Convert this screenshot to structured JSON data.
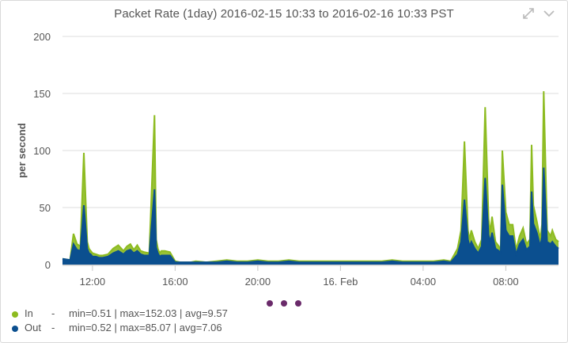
{
  "title": "Packet Rate (1day) 2016-02-15 10:33 to 2016-02-16 10:33 PST",
  "controls": {
    "expand_icon": "expand-arrows-icon",
    "collapse_icon": "chevron-down-icon"
  },
  "colors": {
    "in": "#8dbb20",
    "out": "#0b4f8f",
    "grid": "#dcdcdc",
    "pager": "#6a2a6a"
  },
  "pager": {
    "pages": 3
  },
  "legend": [
    {
      "name": "In",
      "dash": "-",
      "min_text": "min=0.51",
      "max_text": "max=152.03",
      "avg_text": "avg=9.57"
    },
    {
      "name": "Out",
      "dash": "-",
      "min_text": "min=0.52",
      "max_text": "max=85.07",
      "avg_text": "avg=7.06"
    }
  ],
  "chart_data": {
    "type": "area",
    "ylabel": "per second",
    "xlabel": "",
    "ylim": [
      0,
      200
    ],
    "y_ticks": [
      0,
      50,
      100,
      150,
      200
    ],
    "x_range": [
      "2016-02-15 10:33",
      "2016-02-16 10:33"
    ],
    "x_ticks": [
      {
        "t": "2016-02-15 12:00",
        "label": "12:00"
      },
      {
        "t": "2016-02-15 16:00",
        "label": "16:00"
      },
      {
        "t": "2016-02-15 20:00",
        "label": "20:00"
      },
      {
        "t": "2016-02-16 00:00",
        "label": "16. Feb"
      },
      {
        "t": "2016-02-16 04:00",
        "label": "04:00"
      },
      {
        "t": "2016-02-16 08:00",
        "label": "08:00"
      }
    ],
    "grid": true,
    "legend_position": "bottom-left",
    "x": [
      "10:33",
      "10:55",
      "11:05",
      "11:15",
      "11:25",
      "11:35",
      "11:45",
      "11:50",
      "11:55",
      "12:00",
      "12:10",
      "12:20",
      "12:30",
      "12:45",
      "13:00",
      "13:15",
      "13:30",
      "13:40",
      "13:50",
      "14:00",
      "14:10",
      "14:20",
      "14:30",
      "14:45",
      "15:00",
      "15:05",
      "15:10",
      "15:15",
      "15:20",
      "15:30",
      "15:45",
      "16:00",
      "16:15",
      "16:30",
      "16:45",
      "17:00",
      "17:30",
      "18:00",
      "18:30",
      "19:00",
      "19:30",
      "20:00",
      "20:30",
      "21:00",
      "21:30",
      "22:00",
      "22:30",
      "23:00",
      "23:30",
      "00:00",
      "00:30",
      "01:00",
      "01:30",
      "02:00",
      "02:30",
      "03:00",
      "03:30",
      "04:00",
      "04:30",
      "05:00",
      "05:20",
      "05:40",
      "05:50",
      "06:00",
      "06:10",
      "06:15",
      "06:20",
      "06:30",
      "06:40",
      "06:50",
      "07:00",
      "07:10",
      "07:15",
      "07:20",
      "07:30",
      "07:40",
      "07:45",
      "07:50",
      "08:00",
      "08:10",
      "08:20",
      "08:30",
      "08:40",
      "08:50",
      "09:00",
      "09:10",
      "09:15",
      "09:20",
      "09:30",
      "09:40",
      "09:45",
      "09:50",
      "10:00",
      "10:10",
      "10:15",
      "10:20",
      "10:25",
      "10:33"
    ],
    "series": [
      {
        "name": "In",
        "values": [
          5,
          4,
          27,
          18,
          16,
          98,
          20,
          14,
          12,
          10,
          9,
          8,
          8,
          9,
          14,
          17,
          12,
          16,
          18,
          13,
          17,
          12,
          11,
          10,
          131,
          22,
          14,
          10,
          12,
          12,
          11,
          3,
          2,
          2,
          2,
          3,
          2,
          3,
          4,
          3,
          3,
          4,
          3,
          3,
          4,
          3,
          3,
          3,
          3,
          3,
          3,
          3,
          3,
          3,
          4,
          3,
          3,
          3,
          3,
          4,
          3,
          14,
          30,
          108,
          30,
          22,
          30,
          20,
          14,
          22,
          138,
          40,
          28,
          42,
          20,
          16,
          12,
          100,
          46,
          35,
          35,
          13,
          25,
          32,
          18,
          22,
          105,
          52,
          38,
          22,
          35,
          152,
          30,
          25,
          30,
          26,
          22,
          20
        ]
      },
      {
        "name": "Out",
        "values": [
          5,
          4,
          18,
          13,
          12,
          52,
          14,
          10,
          9,
          7,
          7,
          6,
          6,
          7,
          10,
          12,
          9,
          12,
          13,
          10,
          12,
          9,
          8,
          8,
          66,
          15,
          10,
          7,
          8,
          8,
          8,
          2,
          2,
          2,
          2,
          2,
          2,
          2,
          3,
          2,
          2,
          3,
          2,
          2,
          3,
          2,
          2,
          2,
          2,
          2,
          2,
          2,
          2,
          2,
          3,
          2,
          2,
          2,
          2,
          3,
          2,
          9,
          20,
          57,
          22,
          16,
          20,
          14,
          10,
          16,
          76,
          26,
          20,
          28,
          14,
          12,
          9,
          70,
          30,
          25,
          25,
          9,
          18,
          22,
          13,
          16,
          64,
          36,
          28,
          16,
          24,
          85,
          20,
          18,
          20,
          18,
          16,
          14
        ]
      }
    ]
  }
}
